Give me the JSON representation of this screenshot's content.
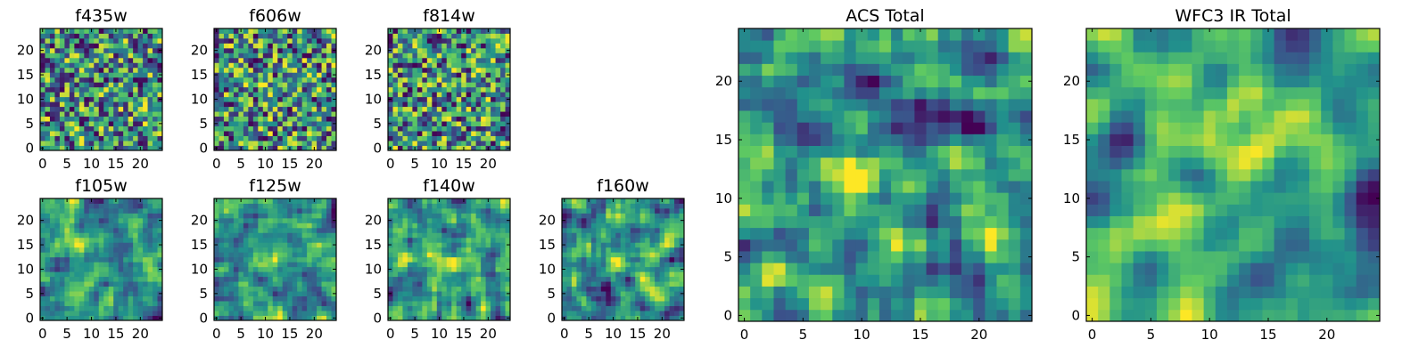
{
  "figure": {
    "colormap_stops": [
      "#440154",
      "#3b528b",
      "#21918c",
      "#5ec962",
      "#fde725"
    ]
  },
  "chart_data": [
    {
      "type": "heatmap",
      "title": "f435w",
      "grid_size": 25,
      "xlim": [
        0,
        24
      ],
      "ylim": [
        0,
        24
      ],
      "x_ticks": [
        0,
        5,
        10,
        15,
        20
      ],
      "y_ticks": [
        0,
        5,
        10,
        15,
        20
      ],
      "smoothness": 0,
      "seed": 11,
      "hot_spots": []
    },
    {
      "type": "heatmap",
      "title": "f606w",
      "grid_size": 25,
      "xlim": [
        0,
        24
      ],
      "ylim": [
        0,
        24
      ],
      "x_ticks": [
        0,
        5,
        10,
        15,
        20
      ],
      "y_ticks": [
        0,
        5,
        10,
        15,
        20
      ],
      "smoothness": 0,
      "seed": 23,
      "hot_spots": [
        [
          12,
          12,
          0.15
        ]
      ]
    },
    {
      "type": "heatmap",
      "title": "f814w",
      "grid_size": 25,
      "xlim": [
        0,
        24
      ],
      "ylim": [
        0,
        24
      ],
      "x_ticks": [
        0,
        5,
        10,
        15,
        20
      ],
      "y_ticks": [
        0,
        5,
        10,
        15,
        20
      ],
      "smoothness": 0,
      "seed": 37,
      "hot_spots": []
    },
    {
      "type": "heatmap",
      "title": "f105w",
      "grid_size": 25,
      "xlim": [
        0,
        24
      ],
      "ylim": [
        0,
        24
      ],
      "x_ticks": [
        0,
        5,
        10,
        15,
        20
      ],
      "y_ticks": [
        0,
        5,
        10,
        15,
        20
      ],
      "smoothness": 1,
      "seed": 41,
      "hot_spots": [
        [
          10,
          9,
          0.2
        ]
      ]
    },
    {
      "type": "heatmap",
      "title": "f125w",
      "grid_size": 25,
      "xlim": [
        0,
        24
      ],
      "ylim": [
        0,
        24
      ],
      "x_ticks": [
        0,
        5,
        10,
        15,
        20
      ],
      "y_ticks": [
        0,
        5,
        10,
        15,
        20
      ],
      "smoothness": 1,
      "seed": 53,
      "hot_spots": [
        [
          12,
          12,
          0.15
        ]
      ]
    },
    {
      "type": "heatmap",
      "title": "f140w",
      "grid_size": 25,
      "xlim": [
        0,
        24
      ],
      "ylim": [
        0,
        24
      ],
      "x_ticks": [
        0,
        5,
        10,
        15,
        20
      ],
      "y_ticks": [
        0,
        5,
        10,
        15,
        20
      ],
      "smoothness": 1,
      "seed": 67,
      "hot_spots": [
        [
          12,
          12,
          0.15
        ]
      ]
    },
    {
      "type": "heatmap",
      "title": "f160w",
      "grid_size": 25,
      "xlim": [
        0,
        24
      ],
      "ylim": [
        0,
        24
      ],
      "x_ticks": [
        0,
        5,
        10,
        15,
        20
      ],
      "y_ticks": [
        0,
        5,
        10,
        15,
        20
      ],
      "smoothness": 1,
      "seed": 79,
      "hot_spots": [
        [
          12,
          12,
          0.4
        ]
      ]
    },
    {
      "type": "heatmap",
      "title": "ACS Total",
      "grid_size": 25,
      "xlim": [
        0,
        24
      ],
      "ylim": [
        0,
        24
      ],
      "x_ticks": [
        0,
        5,
        10,
        15,
        20
      ],
      "y_ticks": [
        0,
        5,
        10,
        15,
        20
      ],
      "smoothness": 1,
      "seed": 97,
      "hot_spots": [
        [
          10,
          12,
          0.3
        ]
      ]
    },
    {
      "type": "heatmap",
      "title": "WFC3 IR Total",
      "grid_size": 25,
      "xlim": [
        0,
        24
      ],
      "ylim": [
        0,
        24
      ],
      "x_ticks": [
        0,
        5,
        10,
        15,
        20
      ],
      "y_ticks": [
        0,
        5,
        10,
        15,
        20
      ],
      "smoothness": 2,
      "seed": 113,
      "hot_spots": [
        [
          12,
          13,
          0.45
        ]
      ]
    }
  ]
}
